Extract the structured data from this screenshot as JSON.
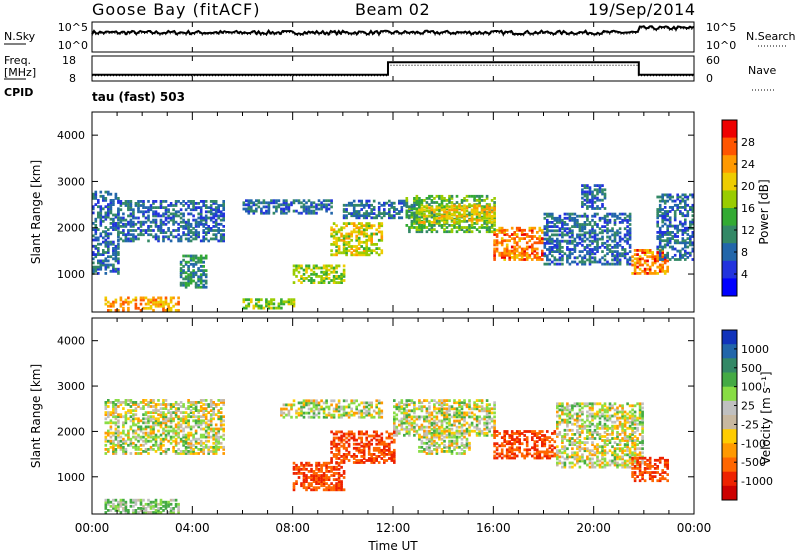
{
  "header": {
    "station": "Goose Bay (fitACF)",
    "beam": "Beam 02",
    "date": "19/Sep/2014",
    "cpid_label": "CPID",
    "cpid_value": "tau (fast) 503"
  },
  "noise_panel": {
    "left_label": "N.Sky",
    "left_top_tick": "10^5",
    "left_bottom_tick": "10^0",
    "right_top_tick": "10^5",
    "right_bottom_tick": "10^0",
    "right_label": "N.Search"
  },
  "freq_panel": {
    "left_label_line1": "Freq.",
    "left_label_line2": "[MHz]",
    "left_top_tick": "18",
    "left_bottom_tick": "8",
    "right_top_tick": "60",
    "right_bottom_tick": "0",
    "right_label": "Nave"
  },
  "power_colorbar": {
    "label": "Power [dB]",
    "ticks": [
      "28",
      "24",
      "20",
      "16",
      "12",
      "8",
      "4"
    ],
    "colors": [
      "#ee0000",
      "#ff5500",
      "#ff9900",
      "#eecc00",
      "#99cc00",
      "#33aa33",
      "#338866",
      "#2266aa",
      "#2233dd",
      "#0000ff"
    ]
  },
  "velocity_colorbar": {
    "label": "Velocity [m s⁻¹]",
    "ticks": [
      "1000",
      "500",
      "100",
      "25",
      "-25",
      "-100",
      "-500",
      "-1000"
    ],
    "colors": [
      "#1133bb",
      "#2266aa",
      "#338866",
      "#44aa44",
      "#88dd44",
      "#c0c0c0",
      "#c8b8a0",
      "#ffcc00",
      "#ff9900",
      "#ff6600",
      "#ee2200",
      "#cc0000"
    ]
  },
  "chart_data": [
    {
      "type": "heatmap",
      "title": "Power",
      "ylabel": "Slant Range [km]",
      "xlabel": "Time UT",
      "x_ticks": [
        "00:00",
        "04:00",
        "08:00",
        "12:00",
        "16:00",
        "20:00",
        "00:00"
      ],
      "y_ticks": [
        "1000",
        "2000",
        "3000",
        "4000"
      ],
      "xlim_hours": [
        0,
        24
      ],
      "ylim_km": [
        180,
        4500
      ],
      "colorbar_range_db": [
        0,
        30
      ],
      "echo_bands": [
        {
          "t": [
            0.0,
            1.0
          ],
          "km": [
            1000,
            2800
          ],
          "db": 8
        },
        {
          "t": [
            1.0,
            5.2
          ],
          "km": [
            1700,
            2600
          ],
          "db": 8
        },
        {
          "t": [
            0.5,
            3.5
          ],
          "km": [
            200,
            500
          ],
          "db": 22
        },
        {
          "t": [
            3.5,
            4.5
          ],
          "km": [
            700,
            1400
          ],
          "db": 10
        },
        {
          "t": [
            6.0,
            8.0
          ],
          "km": [
            250,
            450
          ],
          "db": 16
        },
        {
          "t": [
            6.0,
            9.5
          ],
          "km": [
            2300,
            2600
          ],
          "db": 8
        },
        {
          "t": [
            8.0,
            10.0
          ],
          "km": [
            800,
            1200
          ],
          "db": 16
        },
        {
          "t": [
            9.5,
            11.5
          ],
          "km": [
            1400,
            2100
          ],
          "db": 18
        },
        {
          "t": [
            10.0,
            13.0
          ],
          "km": [
            2200,
            2600
          ],
          "db": 8
        },
        {
          "t": [
            12.5,
            16.0
          ],
          "km": [
            1900,
            2700
          ],
          "db": 14
        },
        {
          "t": [
            13.0,
            16.0
          ],
          "km": [
            2100,
            2500
          ],
          "db": 20
        },
        {
          "t": [
            16.0,
            18.0
          ],
          "km": [
            1300,
            2000
          ],
          "db": 24
        },
        {
          "t": [
            18.0,
            21.5
          ],
          "km": [
            1200,
            2300
          ],
          "db": 8
        },
        {
          "t": [
            19.5,
            20.5
          ],
          "km": [
            2400,
            2900
          ],
          "db": 8
        },
        {
          "t": [
            21.5,
            23.0
          ],
          "km": [
            1000,
            1500
          ],
          "db": 24
        },
        {
          "t": [
            22.5,
            24.0
          ],
          "km": [
            1300,
            2700
          ],
          "db": 8
        }
      ]
    },
    {
      "type": "heatmap",
      "title": "Velocity",
      "ylabel": "Slant Range [km]",
      "xlabel": "Time UT",
      "x_ticks": [
        "00:00",
        "04:00",
        "08:00",
        "12:00",
        "16:00",
        "20:00",
        "00:00"
      ],
      "y_ticks": [
        "1000",
        "2000",
        "3000",
        "4000"
      ],
      "xlim_hours": [
        0,
        24
      ],
      "ylim_km": [
        180,
        4500
      ],
      "colorbar_range_ms": [
        -1000,
        1000
      ],
      "echo_bands": [
        {
          "t": [
            0.5,
            5.2
          ],
          "km": [
            1500,
            2700
          ],
          "v": 0
        },
        {
          "t": [
            0.5,
            3.5
          ],
          "km": [
            200,
            500
          ],
          "v": 100
        },
        {
          "t": [
            7.5,
            11.5
          ],
          "km": [
            2300,
            2700
          ],
          "v": 0
        },
        {
          "t": [
            8.0,
            10.0
          ],
          "km": [
            700,
            1300
          ],
          "v": -500
        },
        {
          "t": [
            9.5,
            12.0
          ],
          "km": [
            1300,
            2000
          ],
          "v": -500
        },
        {
          "t": [
            12.0,
            16.0
          ],
          "km": [
            1900,
            2700
          ],
          "v": 0
        },
        {
          "t": [
            13.0,
            15.0
          ],
          "km": [
            1500,
            2000
          ],
          "v": 0
        },
        {
          "t": [
            16.0,
            18.5
          ],
          "km": [
            1400,
            2000
          ],
          "v": -500
        },
        {
          "t": [
            18.5,
            22.0
          ],
          "km": [
            1200,
            2600
          ],
          "v": 0
        },
        {
          "t": [
            21.5,
            23.0
          ],
          "km": [
            900,
            1400
          ],
          "v": -500
        }
      ]
    }
  ],
  "noise_series": {
    "type": "line",
    "level": 0.65,
    "jump_at_hours": 21.8,
    "level_after": 0.8
  },
  "freq_series": {
    "type": "line",
    "step_at_hours": 11.8,
    "step_back_hours": 21.8,
    "low": 0.25,
    "high": 0.75
  }
}
